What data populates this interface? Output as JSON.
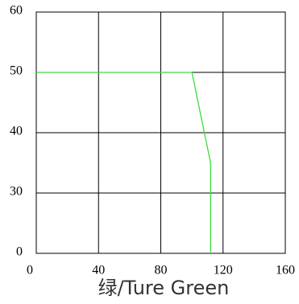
{
  "chart_data": {
    "type": "line",
    "title": "绿/Ture Green",
    "x": [
      0,
      100,
      112,
      112
    ],
    "values": [
      50,
      50,
      35,
      0
    ],
    "color": "#3ddc3d",
    "xlim": [
      0,
      160
    ],
    "xticks": [
      0,
      40,
      80,
      120,
      160
    ],
    "ylim": [
      0,
      60
    ],
    "yticks": [
      0,
      30,
      40,
      50,
      60
    ],
    "grid": true
  }
}
